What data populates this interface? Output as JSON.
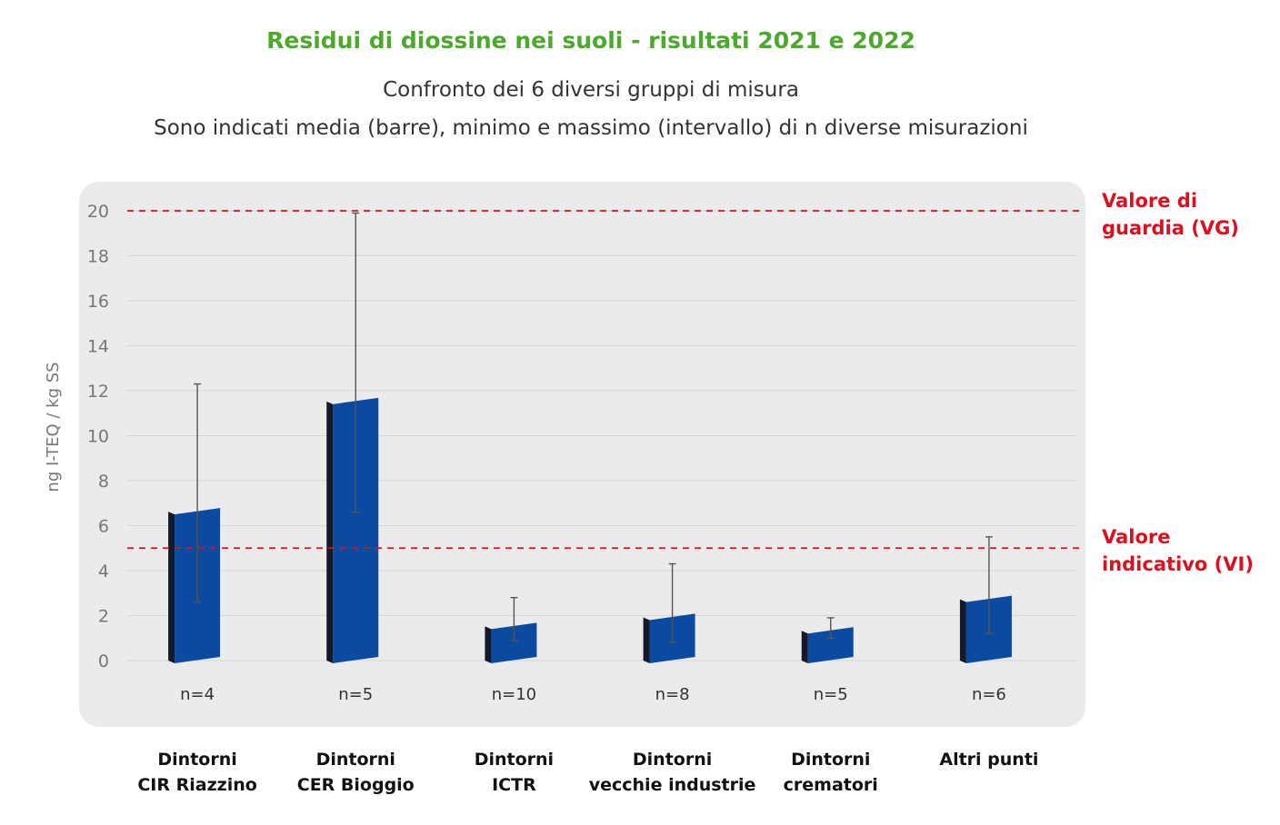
{
  "chart_data": {
    "type": "bar",
    "title": "Residui di diossine nei suoli - risultati 2021 e 2022",
    "subtitle_lines": [
      "Confronto dei 6 diversi gruppi di misura",
      "Sono indicati media (barre), minimo e massimo (intervallo) di n diverse misurazioni"
    ],
    "ylabel": "ng I-TEQ / kg SS",
    "xlabel": "",
    "ylim": [
      0,
      20
    ],
    "yticks": [
      0,
      2,
      4,
      6,
      8,
      10,
      12,
      14,
      16,
      18,
      20
    ],
    "grid": true,
    "categories": [
      "Dintorni\nCIR Riazzino",
      "Dintorni\nCER Bioggio",
      "Dintorni\nICTR",
      "Dintorni\nvecchie industrie",
      "Dintorni\ncrematori",
      "Altri punti"
    ],
    "values": [
      6.5,
      11.4,
      1.4,
      1.8,
      1.2,
      2.6
    ],
    "min": [
      2.6,
      6.6,
      0.9,
      0.8,
      1.0,
      1.2
    ],
    "max": [
      12.3,
      19.9,
      2.8,
      4.3,
      1.9,
      5.5
    ],
    "n_labels": [
      "n=4",
      "n=5",
      "n=10",
      "n=8",
      "n=5",
      "n=6"
    ],
    "reference_lines": [
      {
        "value": 20,
        "label": "Valore di\nguardia (VG)"
      },
      {
        "value": 5,
        "label": "Valore\nindicativo (VI)"
      }
    ],
    "colors": {
      "bar": "#0a4aa0",
      "bar_side": "#141a2a",
      "reference": "#d8101f",
      "title": "#4ea72e",
      "panel": "#ebebeb"
    }
  }
}
